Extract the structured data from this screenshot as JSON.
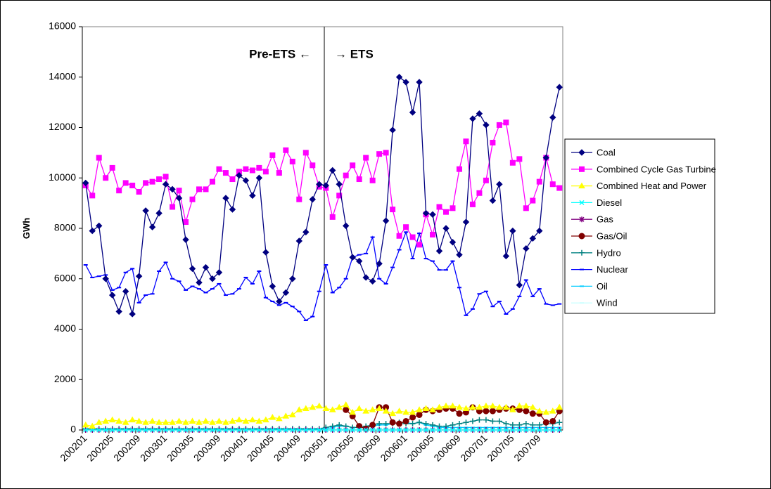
{
  "chart_data": {
    "type": "line",
    "y_label": "GWh",
    "annotations": [
      "Pre-ETS ←",
      "→ ETS"
    ],
    "categories": [
      "200201",
      null,
      null,
      null,
      "200205",
      null,
      null,
      null,
      "200209",
      null,
      null,
      null,
      "200301",
      null,
      null,
      null,
      "200305",
      null,
      null,
      null,
      "200309",
      null,
      null,
      null,
      "200401",
      null,
      null,
      null,
      "200405",
      null,
      null,
      null,
      "200409",
      null,
      null,
      null,
      "200501",
      null,
      null,
      null,
      "200505",
      null,
      null,
      null,
      "200509",
      null,
      null,
      null,
      "200601",
      null,
      null,
      null,
      "200605",
      null,
      null,
      null,
      "200609",
      null,
      null,
      null,
      "200701",
      null,
      null,
      null,
      "200705",
      null,
      null,
      null,
      "200709",
      null,
      null,
      null
    ],
    "ylim": [
      0,
      16000
    ],
    "yticks": [
      0,
      2000,
      4000,
      6000,
      8000,
      10000,
      12000,
      14000,
      16000
    ],
    "grid": false,
    "legend": "right",
    "series": [
      {
        "name": "Coal",
        "color": "#000080",
        "marker": "diamond",
        "values": [
          9800,
          7900,
          8100,
          6000,
          5350,
          4700,
          5500,
          4600,
          6100,
          8700,
          8050,
          8600,
          9750,
          9550,
          9200,
          7550,
          6400,
          5850,
          6450,
          6000,
          6250,
          9200,
          8750,
          10100,
          9900,
          9300,
          10000,
          7050,
          5700,
          5100,
          5450,
          6000,
          7500,
          7850,
          9150,
          9750,
          9700,
          10300,
          9750,
          8100,
          6850,
          6700,
          6050,
          5900,
          6600,
          8300,
          11900,
          14000,
          13800,
          12600,
          13800,
          8600,
          8550,
          7100,
          8000,
          7450,
          6950,
          8250,
          12350,
          12550,
          12100,
          9100,
          9750,
          6900,
          7900,
          5750,
          7200,
          7600,
          7900,
          10800,
          12400,
          13600
        ]
      },
      {
        "name": "Combined Cycle Gas Turbine",
        "color": "#ff00ff",
        "marker": "square",
        "values": [
          9700,
          9300,
          10800,
          10000,
          10400,
          9500,
          9800,
          9700,
          9450,
          9800,
          9850,
          9950,
          10050,
          8850,
          9500,
          8250,
          9150,
          9550,
          9550,
          9850,
          10350,
          10200,
          9950,
          10250,
          10350,
          10300,
          10400,
          10250,
          10900,
          10200,
          11100,
          10650,
          9150,
          11000,
          10500,
          9650,
          9600,
          8450,
          9300,
          10100,
          10500,
          9950,
          10800,
          9900,
          10950,
          11000,
          8750,
          7700,
          8050,
          7650,
          7350,
          8550,
          7750,
          8850,
          8650,
          8800,
          10350,
          11450,
          8950,
          9400,
          9900,
          11400,
          12100,
          12200,
          10600,
          10750,
          8800,
          9100,
          9850,
          10800,
          9750,
          9600
        ]
      },
      {
        "name": "Combined Heat and Power",
        "color": "#ffff00",
        "marker": "triangle",
        "values": [
          200,
          150,
          300,
          350,
          400,
          350,
          300,
          400,
          350,
          300,
          350,
          300,
          300,
          300,
          350,
          300,
          350,
          300,
          350,
          300,
          350,
          300,
          350,
          400,
          350,
          400,
          350,
          400,
          500,
          450,
          550,
          600,
          800,
          850,
          900,
          950,
          850,
          800,
          900,
          1000,
          700,
          850,
          750,
          800,
          850,
          750,
          650,
          750,
          700,
          700,
          800,
          850,
          800,
          900,
          950,
          950,
          900,
          850,
          900,
          900,
          950,
          950,
          900,
          900,
          800,
          950,
          950,
          900,
          750,
          700,
          750,
          900
        ]
      },
      {
        "name": "Diesel",
        "color": "#00ffff",
        "marker": "x",
        "values": [
          0,
          0,
          0,
          0,
          0,
          0,
          0,
          0,
          0,
          0,
          0,
          0,
          0,
          0,
          0,
          0,
          0,
          0,
          0,
          0,
          0,
          0,
          0,
          0,
          0,
          0,
          0,
          0,
          0,
          0,
          0,
          0,
          0,
          0,
          0,
          0,
          0,
          0,
          0,
          0,
          0,
          0,
          0,
          0,
          0,
          0,
          0,
          0,
          0,
          0,
          0,
          0,
          0,
          0,
          0,
          0,
          0,
          0,
          0,
          0,
          0,
          0,
          0,
          0,
          0,
          0,
          0,
          0,
          0,
          0,
          0,
          0
        ]
      },
      {
        "name": "Gas",
        "color": "#800080",
        "marker": "star",
        "values": [
          0,
          0,
          0,
          0,
          0,
          0,
          0,
          0,
          0,
          0,
          0,
          0,
          0,
          0,
          0,
          0,
          0,
          0,
          0,
          0,
          0,
          0,
          0,
          0,
          0,
          0,
          0,
          0,
          0,
          0,
          0,
          0,
          0,
          0,
          0,
          0,
          0,
          0,
          0,
          0,
          0,
          0,
          0,
          0,
          0,
          0,
          0,
          0,
          0,
          0,
          0,
          0,
          0,
          0,
          0,
          0,
          0,
          0,
          0,
          0,
          0,
          0,
          0,
          0,
          0,
          0,
          0,
          0,
          0,
          0,
          0,
          0
        ]
      },
      {
        "name": "Gas/Oil",
        "color": "#800000",
        "marker": "circle",
        "values": [
          null,
          null,
          null,
          null,
          null,
          null,
          null,
          null,
          null,
          null,
          null,
          null,
          null,
          null,
          null,
          null,
          null,
          null,
          null,
          null,
          null,
          null,
          null,
          null,
          null,
          null,
          null,
          null,
          null,
          null,
          null,
          null,
          null,
          null,
          null,
          null,
          null,
          null,
          null,
          800,
          550,
          150,
          50,
          200,
          900,
          900,
          300,
          250,
          350,
          500,
          600,
          800,
          750,
          800,
          850,
          850,
          650,
          700,
          900,
          750,
          750,
          750,
          800,
          850,
          850,
          800,
          750,
          650,
          650,
          300,
          350,
          750
        ]
      },
      {
        "name": "Hydro",
        "color": "#008080",
        "marker": "plus",
        "values": [
          50,
          50,
          50,
          50,
          50,
          50,
          50,
          50,
          50,
          50,
          50,
          50,
          50,
          50,
          50,
          50,
          50,
          50,
          50,
          50,
          50,
          50,
          50,
          50,
          50,
          50,
          50,
          50,
          50,
          50,
          50,
          50,
          50,
          50,
          50,
          50,
          100,
          150,
          200,
          150,
          100,
          100,
          150,
          200,
          250,
          250,
          250,
          300,
          250,
          250,
          300,
          250,
          200,
          150,
          150,
          200,
          250,
          300,
          350,
          400,
          400,
          350,
          350,
          250,
          200,
          200,
          250,
          200,
          200,
          250,
          250,
          300
        ]
      },
      {
        "name": "Nuclear",
        "color": "#0000ff",
        "marker": "dash",
        "values": [
          6550,
          6050,
          6100,
          6150,
          5550,
          5650,
          6250,
          6400,
          5050,
          5350,
          5400,
          6300,
          6650,
          6000,
          5900,
          5550,
          5700,
          5600,
          5450,
          5600,
          5800,
          5350,
          5400,
          5600,
          6050,
          5800,
          6300,
          5250,
          5100,
          4950,
          5050,
          4900,
          4700,
          4350,
          4500,
          5500,
          6550,
          5450,
          5650,
          6000,
          6850,
          6950,
          7000,
          7650,
          6000,
          5800,
          6450,
          7150,
          7850,
          6800,
          7800,
          6800,
          6700,
          6350,
          6350,
          6700,
          5650,
          4550,
          4800,
          5400,
          5500,
          4900,
          5100,
          4600,
          4800,
          5300,
          5950,
          5300,
          5600,
          5000,
          4950,
          5000
        ]
      },
      {
        "name": "Oil",
        "color": "#00ccff",
        "marker": "dash",
        "values": [
          20,
          20,
          20,
          20,
          20,
          20,
          20,
          20,
          20,
          20,
          20,
          20,
          20,
          20,
          20,
          20,
          20,
          20,
          20,
          20,
          20,
          20,
          20,
          20,
          20,
          20,
          20,
          20,
          20,
          20,
          20,
          20,
          20,
          20,
          20,
          20,
          50,
          100,
          150,
          150,
          100,
          100,
          100,
          150,
          200,
          200,
          250,
          300,
          300,
          250,
          300,
          200,
          150,
          100,
          100,
          100,
          100,
          100,
          100,
          100,
          100,
          100,
          100,
          100,
          100,
          100,
          100,
          100,
          100,
          100,
          100,
          100
        ]
      },
      {
        "name": "Wind",
        "color": "#ccffff",
        "marker": "dash",
        "values": [
          10,
          10,
          10,
          10,
          10,
          10,
          10,
          10,
          10,
          10,
          10,
          10,
          10,
          10,
          10,
          10,
          10,
          10,
          10,
          10,
          10,
          10,
          10,
          10,
          20,
          20,
          20,
          20,
          20,
          20,
          20,
          20,
          30,
          30,
          30,
          30,
          40,
          40,
          40,
          40,
          40,
          40,
          40,
          40,
          50,
          50,
          50,
          50,
          60,
          60,
          60,
          60,
          60,
          60,
          60,
          60,
          70,
          70,
          70,
          70,
          80,
          80,
          80,
          80,
          80,
          80,
          80,
          80,
          90,
          90,
          90,
          90
        ]
      }
    ]
  }
}
